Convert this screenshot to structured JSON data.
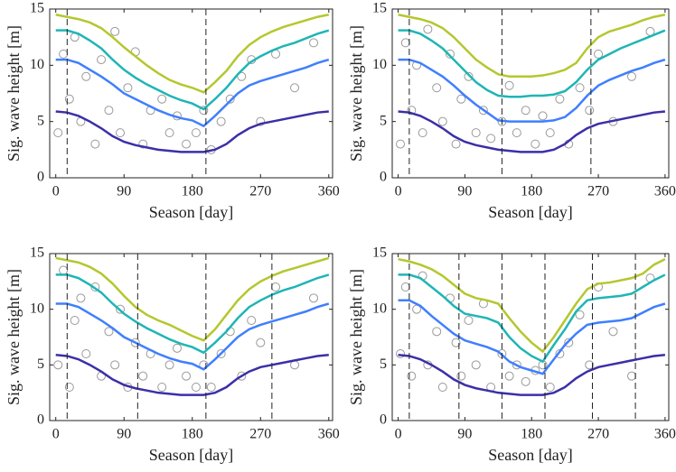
{
  "chart_data": [
    {
      "type": "line",
      "x_label": "Season [day]",
      "y_label": "Sig. wave height [m]",
      "xlim": [
        -8,
        365
      ],
      "ylim": [
        0,
        15
      ],
      "xticks": [
        0,
        90,
        180,
        270,
        360
      ],
      "yticks": [
        0,
        5,
        10,
        15
      ],
      "vlines": [
        15,
        198
      ],
      "x": [
        0,
        15,
        30,
        45,
        60,
        75,
        90,
        105,
        120,
        135,
        150,
        165,
        180,
        195,
        210,
        225,
        240,
        255,
        270,
        285,
        300,
        315,
        330,
        345,
        360
      ],
      "series": [
        {
          "color": "#b5c72e",
          "values": [
            14.5,
            14.3,
            14.1,
            13.8,
            13.3,
            12.5,
            11.6,
            10.8,
            10,
            9.3,
            8.7,
            8.3,
            8.0,
            7.6,
            8.5,
            9.5,
            10.8,
            11.8,
            12.5,
            13,
            13.4,
            13.7,
            14,
            14.3,
            14.5
          ]
        },
        {
          "color": "#1fb5b5",
          "values": [
            13.1,
            13.1,
            12.8,
            12.2,
            11.5,
            10.5,
            9.6,
            8.9,
            8.3,
            7.8,
            7.3,
            6.9,
            6.6,
            6.1,
            7.0,
            8.0,
            9.2,
            10.2,
            10.8,
            11.3,
            11.7,
            12.0,
            12.4,
            12.8,
            13.1
          ]
        },
        {
          "color": "#3f7fff",
          "values": [
            10.5,
            10.5,
            10.2,
            9.6,
            9.0,
            8.3,
            7.5,
            7.0,
            6.5,
            6.0,
            5.6,
            5.3,
            5.1,
            4.6,
            5.5,
            6.5,
            7.5,
            8.2,
            8.6,
            8.9,
            9.2,
            9.5,
            9.8,
            10.2,
            10.5
          ]
        },
        {
          "color": "#3b2fa8",
          "values": [
            5.9,
            5.8,
            5.5,
            5.0,
            4.4,
            3.7,
            3.2,
            2.9,
            2.7,
            2.5,
            2.4,
            2.3,
            2.3,
            2.3,
            2.5,
            3.0,
            3.8,
            4.4,
            4.8,
            5.0,
            5.2,
            5.4,
            5.6,
            5.8,
            5.9
          ]
        }
      ],
      "scatter": {
        "color": "#999999",
        "x": [
          3,
          10,
          18,
          25,
          33,
          40,
          52,
          60,
          70,
          78,
          85,
          95,
          105,
          115,
          125,
          140,
          150,
          160,
          172,
          185,
          195,
          205,
          218,
          230,
          245,
          258,
          270,
          290,
          315,
          340
        ],
        "y": [
          4,
          11,
          7,
          12.5,
          5,
          9,
          3,
          10.5,
          6,
          13,
          4,
          8,
          11.2,
          3,
          6,
          7,
          4,
          5.5,
          3,
          4,
          6,
          2.5,
          5,
          7,
          9,
          10.5,
          5,
          11,
          8,
          12
        ]
      }
    },
    {
      "type": "line",
      "x_label": "Season [day]",
      "y_label": "Sig. wave height [m]",
      "xlim": [
        -8,
        365
      ],
      "ylim": [
        0,
        15
      ],
      "xticks": [
        0,
        90,
        180,
        270,
        360
      ],
      "yticks": [
        0,
        5,
        10,
        15
      ],
      "vlines": [
        15,
        140,
        260
      ],
      "x": [
        0,
        15,
        30,
        45,
        60,
        75,
        90,
        105,
        120,
        135,
        150,
        165,
        180,
        195,
        210,
        225,
        240,
        255,
        270,
        285,
        300,
        315,
        330,
        345,
        360
      ],
      "series": [
        {
          "color": "#b5c72e",
          "values": [
            14.5,
            14.3,
            14.1,
            13.8,
            13.3,
            12.5,
            11.5,
            10.5,
            9.8,
            9.2,
            9.0,
            9.0,
            9.0,
            9.1,
            9.3,
            9.6,
            10.2,
            11.5,
            12.5,
            13,
            13.3,
            13.6,
            14,
            14.3,
            14.5
          ]
        },
        {
          "color": "#1fb5b5",
          "values": [
            13.1,
            13.1,
            12.8,
            12.2,
            11.5,
            10.5,
            9.5,
            8.5,
            7.8,
            7.3,
            7.2,
            7.2,
            7.3,
            7.3,
            7.4,
            7.7,
            8.5,
            9.6,
            10.5,
            11.0,
            11.5,
            11.9,
            12.3,
            12.7,
            13.1
          ]
        },
        {
          "color": "#3f7fff",
          "values": [
            10.5,
            10.5,
            10.2,
            9.6,
            9.0,
            8.2,
            7.3,
            6.5,
            5.8,
            5.1,
            5.0,
            5.0,
            5.0,
            5.0,
            5.1,
            5.4,
            6.2,
            7.3,
            8.2,
            8.7,
            9.1,
            9.5,
            9.8,
            10.2,
            10.5
          ]
        },
        {
          "color": "#3b2fa8",
          "values": [
            5.9,
            5.8,
            5.5,
            5.0,
            4.4,
            3.7,
            3.2,
            2.9,
            2.7,
            2.5,
            2.4,
            2.3,
            2.3,
            2.3,
            2.5,
            3.0,
            3.8,
            4.4,
            4.8,
            5.0,
            5.2,
            5.4,
            5.6,
            5.8,
            5.9
          ]
        }
      ],
      "scatter": {
        "color": "#999999",
        "x": [
          3,
          10,
          18,
          25,
          33,
          40,
          52,
          60,
          70,
          78,
          85,
          95,
          105,
          115,
          125,
          140,
          150,
          160,
          172,
          185,
          195,
          205,
          218,
          230,
          245,
          258,
          270,
          290,
          315,
          340
        ],
        "y": [
          3,
          12,
          6,
          10,
          4,
          13.2,
          8,
          5,
          11,
          3,
          7,
          9,
          4,
          6,
          3.5,
          5,
          8.2,
          4,
          6,
          3,
          5.5,
          4,
          7,
          3,
          8,
          6,
          11,
          5,
          9,
          13
        ]
      }
    },
    {
      "type": "line",
      "x_label": "Season [day]",
      "y_label": "Sig. wave height [m]",
      "xlim": [
        -8,
        365
      ],
      "ylim": [
        0,
        15
      ],
      "xticks": [
        0,
        90,
        180,
        270,
        360
      ],
      "yticks": [
        0,
        5,
        10,
        15
      ],
      "vlines": [
        15,
        108,
        198,
        285
      ],
      "x": [
        0,
        15,
        30,
        45,
        60,
        75,
        90,
        105,
        120,
        135,
        150,
        165,
        180,
        195,
        210,
        225,
        240,
        255,
        270,
        285,
        300,
        315,
        330,
        345,
        360
      ],
      "series": [
        {
          "color": "#b5c72e",
          "values": [
            14.6,
            14.4,
            14.2,
            13.8,
            13.2,
            12.3,
            11.2,
            10.2,
            9.5,
            9.0,
            8.6,
            8.1,
            7.6,
            7.2,
            8.2,
            9.5,
            10.8,
            11.8,
            12.5,
            13,
            13.4,
            13.7,
            14,
            14.3,
            14.6
          ]
        },
        {
          "color": "#1fb5b5",
          "values": [
            13.1,
            13.1,
            12.8,
            12.2,
            11.5,
            10.5,
            9.6,
            8.9,
            8.3,
            7.8,
            7.3,
            6.9,
            6.6,
            6.1,
            7.0,
            8.0,
            9.2,
            10.2,
            10.8,
            11.3,
            11.7,
            12.0,
            12.4,
            12.8,
            13.1
          ]
        },
        {
          "color": "#3f7fff",
          "values": [
            10.5,
            10.5,
            10.2,
            9.6,
            9.0,
            8.3,
            7.5,
            7.0,
            6.5,
            6.0,
            5.6,
            5.3,
            5.1,
            4.6,
            5.5,
            6.5,
            7.5,
            8.2,
            8.6,
            8.9,
            9.2,
            9.5,
            9.8,
            10.2,
            10.5
          ]
        },
        {
          "color": "#3b2fa8",
          "values": [
            5.9,
            5.8,
            5.5,
            5.0,
            4.4,
            3.7,
            3.2,
            2.9,
            2.7,
            2.5,
            2.4,
            2.3,
            2.3,
            2.3,
            2.5,
            3.0,
            3.8,
            4.4,
            4.8,
            5.0,
            5.2,
            5.4,
            5.6,
            5.8,
            5.9
          ]
        }
      ],
      "scatter": {
        "color": "#999999",
        "x": [
          3,
          10,
          18,
          25,
          33,
          40,
          52,
          60,
          70,
          78,
          85,
          95,
          105,
          115,
          125,
          140,
          150,
          160,
          172,
          185,
          195,
          205,
          218,
          230,
          245,
          258,
          270,
          290,
          315,
          340
        ],
        "y": [
          5,
          13.5,
          3,
          9,
          11,
          6,
          12,
          4,
          8,
          5,
          10,
          3,
          7,
          4,
          6,
          3,
          5,
          6.5,
          4,
          3,
          5,
          3,
          6,
          8,
          4,
          9,
          7,
          12,
          5,
          11
        ]
      }
    },
    {
      "type": "line",
      "x_label": "Season [day]",
      "y_label": "Sig. wave height [m]",
      "xlim": [
        -8,
        365
      ],
      "ylim": [
        0,
        15
      ],
      "xticks": [
        0,
        90,
        180,
        270,
        360
      ],
      "yticks": [
        0,
        5,
        10,
        15
      ],
      "vlines": [
        15,
        82,
        140,
        198,
        262,
        320
      ],
      "x": [
        0,
        15,
        30,
        45,
        60,
        75,
        90,
        105,
        120,
        135,
        150,
        165,
        180,
        195,
        210,
        225,
        240,
        255,
        270,
        285,
        300,
        315,
        330,
        345,
        360
      ],
      "series": [
        {
          "color": "#b5c72e",
          "values": [
            14.5,
            14.3,
            14,
            13.6,
            13,
            12.2,
            11.4,
            11,
            10.8,
            10.5,
            9.2,
            8,
            7,
            6.2,
            7.5,
            9,
            10.5,
            11.8,
            12.3,
            12.4,
            12.6,
            12.8,
            13.2,
            14,
            14.5
          ]
        },
        {
          "color": "#1fb5b5",
          "values": [
            13.1,
            13.1,
            12.8,
            12,
            11.2,
            10.3,
            9.6,
            9.4,
            9.2,
            8.8,
            7.5,
            6.5,
            5.8,
            5.3,
            6.8,
            8.2,
            9.8,
            10.8,
            11.0,
            11.1,
            11.2,
            11.4,
            12,
            12.6,
            13.1
          ]
        },
        {
          "color": "#3f7fff",
          "values": [
            10.8,
            10.8,
            10.3,
            9.4,
            8.6,
            7.8,
            7.2,
            6.9,
            6.6,
            6.2,
            5.3,
            4.8,
            4.5,
            4.2,
            5.5,
            6.8,
            7.8,
            8.6,
            8.8,
            8.9,
            9.0,
            9.2,
            9.7,
            10.2,
            10.5
          ]
        },
        {
          "color": "#3b2fa8",
          "values": [
            5.9,
            5.8,
            5.5,
            5.0,
            4.4,
            3.7,
            3.2,
            2.9,
            2.7,
            2.5,
            2.4,
            2.3,
            2.3,
            2.3,
            2.5,
            3.0,
            3.8,
            4.4,
            4.8,
            5.0,
            5.2,
            5.4,
            5.6,
            5.8,
            5.9
          ]
        }
      ],
      "scatter": {
        "color": "#999999",
        "x": [
          3,
          10,
          18,
          25,
          33,
          40,
          52,
          60,
          70,
          78,
          85,
          95,
          105,
          115,
          125,
          140,
          150,
          160,
          172,
          185,
          195,
          205,
          218,
          230,
          245,
          258,
          270,
          290,
          315,
          340
        ],
        "y": [
          6,
          12,
          4,
          10,
          13,
          5,
          8,
          3,
          11,
          7,
          4,
          9,
          5,
          10.5,
          3,
          6,
          4,
          5,
          3.5,
          4.5,
          5,
          3,
          6,
          7,
          9.5,
          5,
          12,
          8,
          4,
          12.8
        ]
      }
    }
  ]
}
